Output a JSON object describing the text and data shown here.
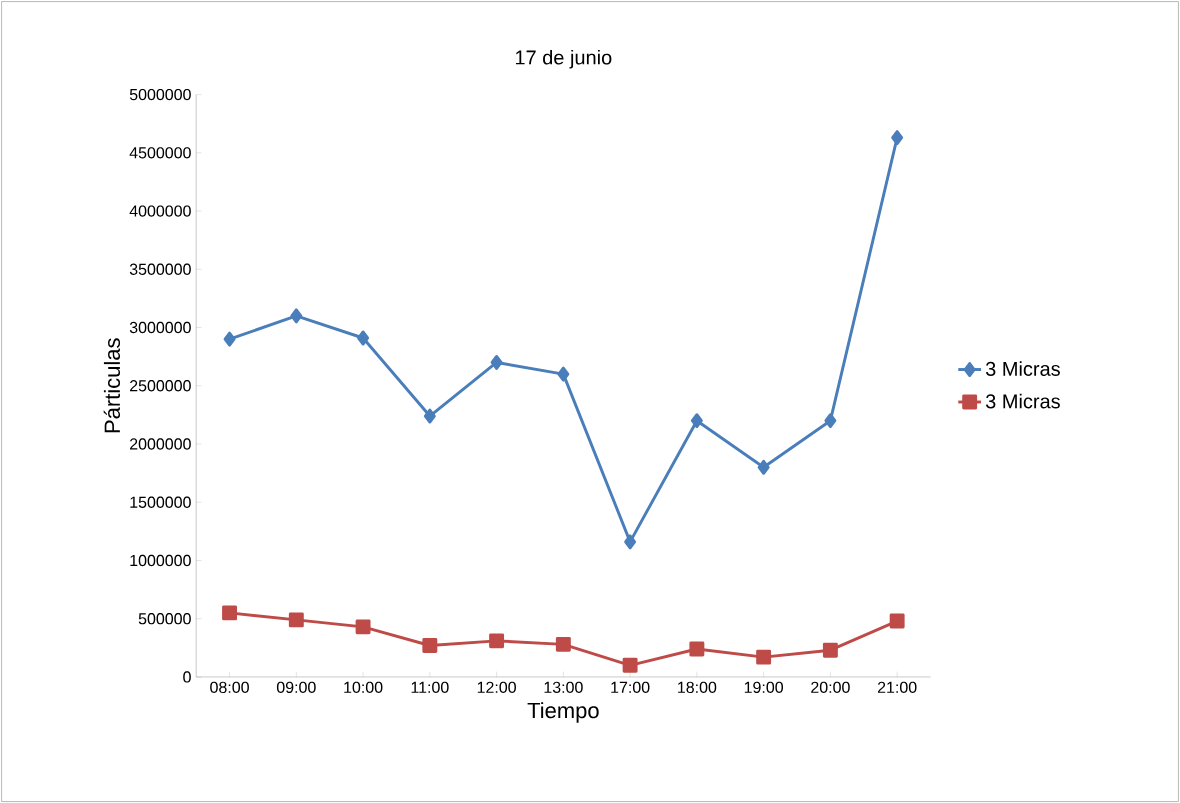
{
  "chart_data": {
    "type": "line",
    "title": "17 de junio",
    "xlabel": "Tiempo",
    "ylabel": "Párticulas",
    "categories": [
      "08:00",
      "09:00",
      "10:00",
      "11:00",
      "12:00",
      "13:00",
      "17:00",
      "18:00",
      "19:00",
      "20:00",
      "21:00"
    ],
    "series": [
      {
        "name": "3 Micras",
        "color": "#4a7ebb",
        "marker": "diamond",
        "values": [
          2900000,
          3100000,
          2910000,
          2240000,
          2700000,
          2600000,
          1160000,
          2200000,
          1800000,
          2200000,
          4630000
        ]
      },
      {
        "name": "3 Micras",
        "color": "#be4b48",
        "marker": "square",
        "values": [
          550000,
          490000,
          430000,
          270000,
          310000,
          280000,
          100000,
          240000,
          170000,
          230000,
          480000
        ]
      }
    ],
    "ylim": [
      0,
      5000000
    ],
    "yticks": [
      0,
      500000,
      1000000,
      1500000,
      2000000,
      2500000,
      3000000,
      3500000,
      4000000,
      4500000,
      5000000
    ],
    "grid": false,
    "legend": "right",
    "line_style": "solid"
  }
}
